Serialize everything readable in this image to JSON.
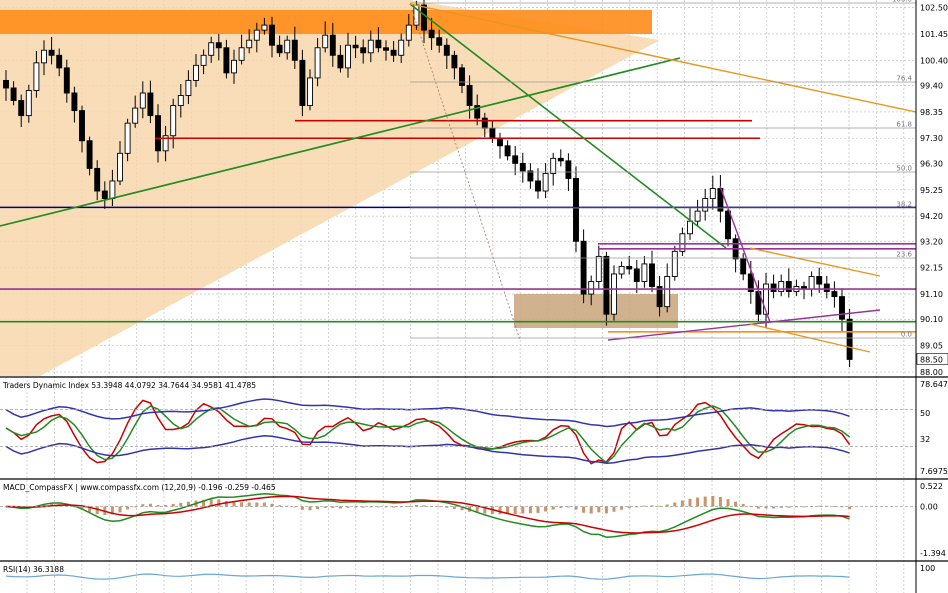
{
  "chart_data": [
    {
      "type": "candlestick",
      "title": "",
      "price_axis": {
        "ticks": [
          "102.50",
          "101.45",
          "100.40",
          "99.40",
          "98.35",
          "97.30",
          "96.30",
          "95.25",
          "94.20",
          "93.20",
          "92.15",
          "91.10",
          "90.10",
          "89.05",
          "88.00"
        ],
        "current_price": "88.50",
        "range": [
          88.0,
          102.8
        ]
      },
      "fibonacci_levels": [
        "100.0",
        "76.4",
        "61.8",
        "50.0",
        "38.2",
        "23.6",
        "0.0"
      ],
      "closes": [
        99.3,
        98.8,
        98.2,
        99.2,
        100.3,
        100.8,
        100.6,
        100.1,
        99.1,
        98.4,
        97.2,
        96.1,
        95.2,
        94.9,
        95.6,
        96.7,
        97.9,
        98.5,
        99.1,
        98.2,
        96.8,
        97.4,
        98.6,
        99.0,
        99.6,
        100.2,
        100.6,
        101.1,
        100.9,
        99.9,
        100.4,
        100.9,
        101.2,
        101.6,
        101.8,
        101.0,
        100.7,
        101.2,
        100.4,
        98.6,
        99.7,
        100.9,
        101.4,
        100.6,
        100.1,
        101.0,
        100.9,
        100.7,
        101.2,
        100.9,
        100.8,
        100.6,
        101.2,
        101.8,
        102.6,
        101.6,
        101.3,
        101.0,
        100.6,
        100.1,
        99.4,
        98.6,
        98.1,
        97.7,
        97.3,
        97.0,
        96.6,
        96.3,
        96.0,
        95.6,
        95.2,
        95.9,
        96.5,
        96.4,
        95.7,
        93.2,
        91.1,
        91.6,
        92.6,
        90.3,
        91.9,
        92.2,
        92.1,
        91.6,
        92.3,
        91.4,
        90.6,
        91.8,
        92.8,
        93.5,
        94.0,
        94.4,
        94.9,
        95.3,
        94.4,
        93.3,
        92.5,
        91.9,
        91.2,
        90.3,
        91.5,
        91.2,
        91.6,
        91.2,
        91.4,
        91.3,
        91.8,
        91.5,
        91.2,
        91.0,
        90.1,
        88.5
      ],
      "horizontal_levels": [
        {
          "price": 102.0,
          "color": "#ff8c1a",
          "style": "zone"
        },
        {
          "price": 98.0,
          "color": "#cc0000",
          "style": "line"
        },
        {
          "price": 97.3,
          "color": "#cc0000",
          "style": "line"
        },
        {
          "price": 94.55,
          "color": "#000080",
          "style": "line"
        },
        {
          "price": 93.1,
          "color": "#993399",
          "style": "line"
        },
        {
          "price": 92.9,
          "color": "#993399",
          "style": "line"
        },
        {
          "price": 91.3,
          "color": "#993399",
          "style": "line"
        },
        {
          "price": 90.0,
          "color": "#228b22",
          "style": "line"
        },
        {
          "price": 89.6,
          "color": "#ff8c1a",
          "style": "line"
        }
      ]
    },
    {
      "type": "line",
      "title": "Traders Dynamic Index 53.3948 44.0792 34.7644 34.9581 41.4785",
      "axis_labels": [
        "78.6472",
        "50",
        "32",
        "7.6975"
      ],
      "series": [
        {
          "color": "#cc0000"
        },
        {
          "color": "#228b22"
        },
        {
          "color": "#3333aa"
        }
      ]
    },
    {
      "type": "bar",
      "title": "MACD_CompassFX | www.compassfx.com (12,20,9) -0.196 -0.259 -0.465",
      "axis_labels": [
        "0.522",
        "0.00",
        "-1.394"
      ]
    },
    {
      "type": "line",
      "title": "RSI(14) 36.3188",
      "axis_labels": [
        "100"
      ]
    }
  ]
}
